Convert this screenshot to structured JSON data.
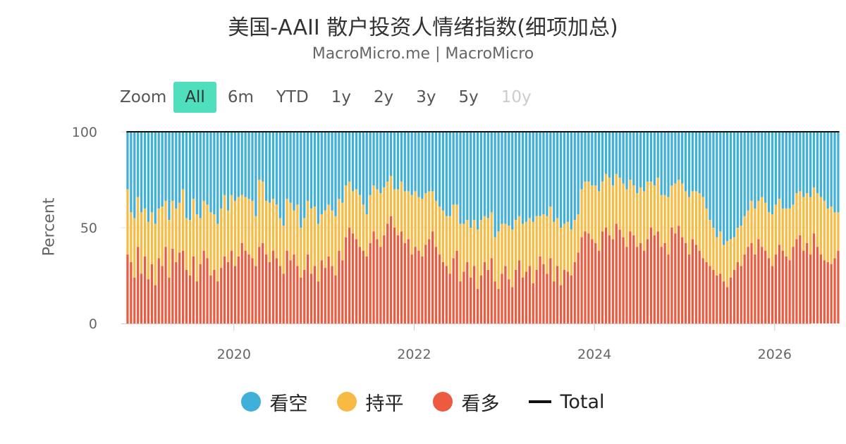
{
  "header": {
    "title": "美国-AAII 散户投资人情绪指数(细项加总)",
    "subtitle": "MacroMicro.me | MacroMicro"
  },
  "zoom": {
    "label": "Zoom",
    "buttons": [
      "All",
      "6m",
      "YTD",
      "1y",
      "2y",
      "3y",
      "5y",
      "10y"
    ],
    "active": "All",
    "disabled": [
      "10y"
    ]
  },
  "chart_data": {
    "type": "bar",
    "stacked": true,
    "ylabel": "Percent",
    "ylim": [
      0,
      100
    ],
    "yticks": [
      0,
      50,
      100
    ],
    "xlim": [
      2018.75,
      2026.4
    ],
    "xticks": [
      2020,
      2022,
      2024,
      2026
    ],
    "grid": true,
    "legend_position": "bottom",
    "bars_per_year": 26,
    "x_start": 2018.82,
    "series": [
      {
        "name": "看多",
        "color": "#ec5b3f",
        "values": [
          36,
          32,
          24,
          40,
          26,
          35,
          23,
          31,
          20,
          34,
          30,
          40,
          24,
          39,
          32,
          37,
          38,
          28,
          25,
          35,
          22,
          31,
          38,
          34,
          25,
          28,
          22,
          29,
          35,
          32,
          38,
          30,
          35,
          42,
          38,
          36,
          34,
          30,
          40,
          42,
          36,
          32,
          38,
          34,
          30,
          26,
          38,
          33,
          36,
          30,
          24,
          28,
          36,
          26,
          30,
          22,
          33,
          29,
          35,
          30,
          25,
          38,
          33,
          45,
          50,
          47,
          44,
          40,
          38,
          35,
          42,
          48,
          44,
          40,
          46,
          52,
          56,
          50,
          46,
          48,
          42,
          44,
          36,
          40,
          38,
          35,
          41,
          44,
          48,
          40,
          36,
          32,
          30,
          26,
          34,
          38,
          22,
          27,
          32,
          24,
          30,
          18,
          25,
          32,
          28,
          34,
          22,
          18,
          26,
          30,
          23,
          19,
          28,
          33,
          24,
          27,
          30,
          21,
          28,
          35,
          31,
          26,
          34,
          22,
          30,
          20,
          28,
          27,
          25,
          32,
          37,
          45,
          48,
          47,
          44,
          42,
          38,
          48,
          50,
          46,
          44,
          52,
          49,
          45,
          40,
          48,
          46,
          40,
          42,
          38,
          44,
          50,
          46,
          48,
          40,
          42,
          36,
          50,
          47,
          51,
          45,
          42,
          36,
          44,
          41,
          38,
          34,
          32,
          30,
          28,
          25,
          26,
          22,
          19,
          24,
          28,
          32,
          30,
          36,
          40,
          42,
          36,
          44,
          40,
          38,
          34,
          30,
          36,
          41,
          38,
          35,
          33,
          40,
          44,
          46,
          38,
          42,
          36,
          47,
          40,
          36,
          33,
          32,
          31,
          34,
          38
        ]
      },
      {
        "name": "持平",
        "color": "#f7bb43",
        "values": [
          34,
          26,
          31,
          26,
          32,
          25,
          30,
          27,
          32,
          26,
          31,
          24,
          30,
          25,
          28,
          26,
          32,
          27,
          29,
          30,
          35,
          24,
          26,
          28,
          33,
          29,
          30,
          31,
          32,
          27,
          29,
          34,
          31,
          25,
          28,
          29,
          30,
          26,
          35,
          32,
          28,
          31,
          27,
          28,
          25,
          25,
          27,
          30,
          23,
          32,
          26,
          27,
          28,
          34,
          31,
          30,
          24,
          30,
          27,
          29,
          31,
          27,
          30,
          27,
          24,
          22,
          26,
          27,
          24,
          22,
          25,
          24,
          26,
          28,
          25,
          22,
          21,
          20,
          24,
          26,
          27,
          25,
          31,
          29,
          28,
          30,
          27,
          25,
          21,
          24,
          25,
          27,
          26,
          30,
          28,
          24,
          30,
          25,
          22,
          26,
          24,
          31,
          29,
          24,
          27,
          24,
          23,
          30,
          26,
          22,
          28,
          30,
          26,
          23,
          28,
          26,
          25,
          32,
          28,
          21,
          26,
          30,
          27,
          31,
          25,
          30,
          24,
          26,
          24,
          22,
          20,
          25,
          26,
          27,
          28,
          30,
          31,
          26,
          28,
          30,
          28,
          26,
          27,
          28,
          30,
          27,
          26,
          28,
          29,
          31,
          30,
          24,
          26,
          28,
          27,
          25,
          30,
          22,
          26,
          24,
          28,
          27,
          30,
          25,
          28,
          30,
          32,
          28,
          24,
          22,
          20,
          22,
          19,
          24,
          20,
          17,
          18,
          21,
          20,
          19,
          22,
          24,
          20,
          26,
          25,
          24,
          27,
          26,
          24,
          22,
          25,
          27,
          22,
          24,
          23,
          28,
          26,
          30,
          24,
          28,
          30,
          31,
          28,
          30,
          24,
          20
        ]
      },
      {
        "name": "看空",
        "color": "#3fb0d8",
        "values": [
          30,
          42,
          45,
          34,
          42,
          40,
          47,
          42,
          48,
          40,
          39,
          36,
          46,
          36,
          40,
          37,
          30,
          45,
          46,
          35,
          43,
          45,
          36,
          38,
          42,
          43,
          48,
          40,
          33,
          41,
          33,
          36,
          34,
          33,
          34,
          35,
          36,
          44,
          25,
          26,
          36,
          37,
          35,
          38,
          45,
          49,
          35,
          37,
          41,
          38,
          50,
          45,
          36,
          40,
          39,
          48,
          43,
          41,
          38,
          41,
          44,
          35,
          37,
          28,
          26,
          31,
          30,
          33,
          38,
          43,
          33,
          28,
          30,
          32,
          29,
          26,
          23,
          30,
          30,
          26,
          31,
          31,
          33,
          31,
          34,
          35,
          32,
          31,
          31,
          36,
          39,
          41,
          44,
          44,
          38,
          38,
          48,
          48,
          46,
          50,
          46,
          51,
          46,
          44,
          45,
          42,
          55,
          52,
          48,
          48,
          49,
          51,
          46,
          44,
          48,
          47,
          45,
          47,
          44,
          44,
          43,
          44,
          39,
          47,
          45,
          50,
          48,
          47,
          51,
          46,
          43,
          30,
          26,
          26,
          28,
          28,
          31,
          26,
          22,
          24,
          28,
          22,
          24,
          27,
          30,
          25,
          28,
          32,
          29,
          31,
          26,
          26,
          28,
          24,
          33,
          33,
          34,
          28,
          27,
          25,
          27,
          31,
          34,
          31,
          31,
          32,
          34,
          40,
          46,
          50,
          55,
          52,
          59,
          57,
          56,
          55,
          50,
          49,
          44,
          41,
          36,
          40,
          36,
          34,
          37,
          42,
          43,
          38,
          35,
          40,
          40,
          40,
          38,
          32,
          31,
          34,
          32,
          34,
          29,
          32,
          34,
          36,
          40,
          39,
          42,
          42
        ]
      }
    ],
    "total_line": {
      "name": "Total",
      "color": "#111111",
      "value": 100
    }
  }
}
